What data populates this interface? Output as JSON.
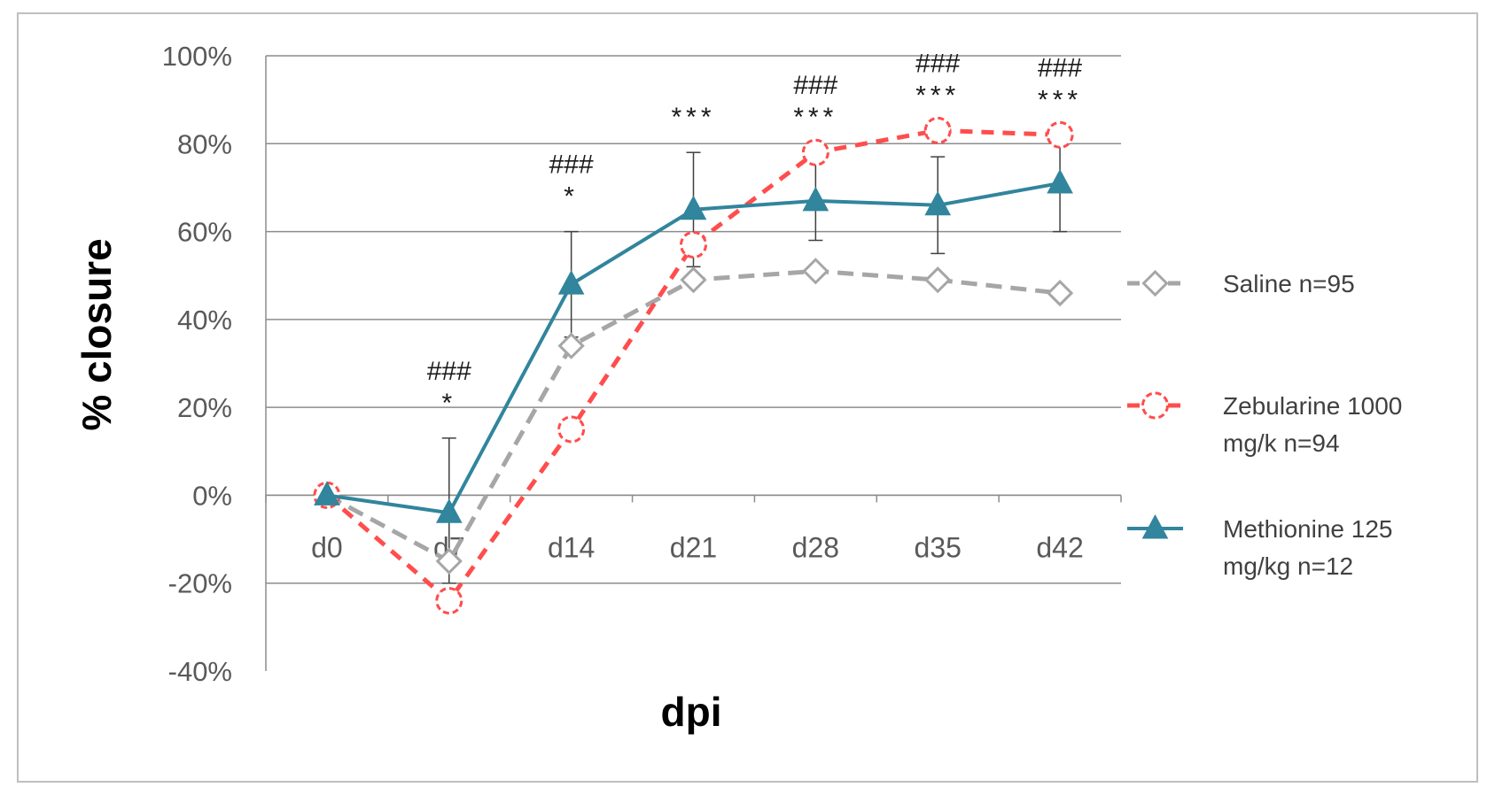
{
  "chart_data": {
    "type": "line",
    "title": "",
    "xlabel": "dpi",
    "ylabel": "% closure",
    "categories": [
      "d0",
      "d7",
      "d14",
      "d21",
      "d28",
      "d35",
      "d42"
    ],
    "y_ticks": [
      "-40%",
      "-20%",
      "0%",
      "20%",
      "40%",
      "60%",
      "80%",
      "100%"
    ],
    "ylim": [
      -40,
      100
    ],
    "grid": true,
    "legend_position": "right",
    "series": [
      {
        "name": "Saline n=95",
        "values": [
          0,
          -15,
          34,
          49,
          51,
          49,
          46
        ],
        "color": "#a6a6a6",
        "line_style": "dashed",
        "marker": "diamond"
      },
      {
        "name": "Zebularine 1000 mg/k n=94",
        "legend_lines": [
          "Zebularine 1000",
          "mg/k n=94"
        ],
        "values": [
          0,
          -24,
          15,
          57,
          78,
          83,
          82
        ],
        "color": "#ff4d4d",
        "line_style": "dashed",
        "marker": "circle"
      },
      {
        "name": "Methionine 125 mg/kg n=12",
        "legend_lines": [
          "Methionine  125",
          "mg/kg n=12"
        ],
        "values": [
          0,
          -4,
          48,
          65,
          67,
          66,
          71
        ],
        "error_high": [
          null,
          13,
          60,
          78,
          76,
          77,
          82
        ],
        "error_low": [
          null,
          -20,
          36,
          52,
          58,
          55,
          60
        ],
        "color": "#31859c",
        "line_style": "solid",
        "marker": "triangle"
      }
    ],
    "annotations": [
      {
        "x": "d7",
        "lines": [
          "###",
          "*"
        ]
      },
      {
        "x": "d14",
        "lines": [
          "###",
          "*"
        ]
      },
      {
        "x": "d21",
        "lines": [
          "***"
        ]
      },
      {
        "x": "d28",
        "lines": [
          "###",
          "***"
        ]
      },
      {
        "x": "d35",
        "lines": [
          "###",
          "***"
        ]
      },
      {
        "x": "d42",
        "lines": [
          "###",
          "***"
        ]
      }
    ]
  }
}
